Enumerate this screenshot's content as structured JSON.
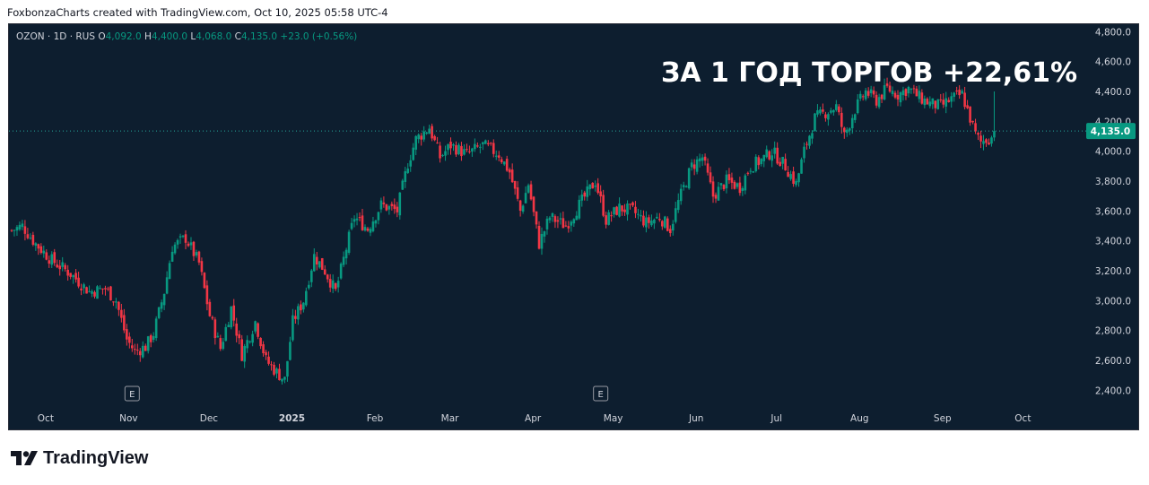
{
  "caption": "FoxbonzaCharts created with TradingView.com, Oct 10, 2025 05:58 UTC-4",
  "legend": {
    "symbol": "OZON · 1D · RUS",
    "open_label": "O",
    "open_value": "4,092.0",
    "high_label": "H",
    "high_value": "4,400.0",
    "low_label": "L",
    "low_value": "4,068.0",
    "close_label": "C",
    "close_value": "4,135.0",
    "change": "+23.0 (+0.56%)"
  },
  "overlay_text": "ЗА 1 ГОД ТОРГОВ +22,61%",
  "footer_brand": "TradingView",
  "colors": {
    "background": "#0d1e2f",
    "up": "#089981",
    "down": "#f23645",
    "axis_text": "#d1d4dc",
    "price_line": "#26a69a",
    "earnings_marker": "#9598a1"
  },
  "icons": [
    "tradingview-logo-icon",
    "earnings-e-icon"
  ],
  "chart_data": {
    "type": "candlestick",
    "title": "",
    "symbol": "OZON",
    "timeframe": "1D",
    "exchange": "RUS",
    "ylim": [
      2300,
      4850
    ],
    "y_ticks": [
      2400,
      2600,
      2800,
      3000,
      3200,
      3400,
      3600,
      3800,
      4000,
      4200,
      4400,
      4600,
      4800
    ],
    "y_tick_labels": [
      "2,400.0",
      "2,600.0",
      "2,800.0",
      "3,000.0",
      "3,200.0",
      "3,400.0",
      "3,600.0",
      "3,800.0",
      "4,000.0",
      "4,200.0",
      "4,400.0",
      "4,600.0",
      "4,800.0"
    ],
    "x_tick_labels": [
      "Oct",
      "Nov",
      "Dec",
      "2025",
      "Feb",
      "Mar",
      "Apr",
      "May",
      "Jun",
      "Jul",
      "Aug",
      "Sep",
      "Oct"
    ],
    "x_tick_dates": [
      "2024-10-01",
      "2024-11-01",
      "2024-12-01",
      "2025-01-01",
      "2025-02-01",
      "2025-03-01",
      "2025-04-01",
      "2025-05-01",
      "2025-06-01",
      "2025-07-01",
      "2025-08-01",
      "2025-09-01",
      "2025-10-01"
    ],
    "date_start": "2024-09-22",
    "date_end": "2025-10-25",
    "last_price": 4135.0,
    "last_price_label": "4,135.0",
    "earnings_markers": [
      {
        "date": "2024-11-07",
        "label": "E"
      },
      {
        "date": "2025-05-01",
        "label": "E"
      }
    ],
    "close_path": [
      {
        "date": "2024-09-23",
        "close": 3470
      },
      {
        "date": "2024-09-27",
        "close": 3500
      },
      {
        "date": "2024-10-02",
        "close": 3380
      },
      {
        "date": "2024-10-08",
        "close": 3270
      },
      {
        "date": "2024-10-15",
        "close": 3180
      },
      {
        "date": "2024-10-22",
        "close": 3060
      },
      {
        "date": "2024-10-28",
        "close": 3080
      },
      {
        "date": "2024-11-01",
        "close": 3000
      },
      {
        "date": "2024-11-05",
        "close": 2740
      },
      {
        "date": "2024-11-08",
        "close": 2660
      },
      {
        "date": "2024-11-12",
        "close": 2690
      },
      {
        "date": "2024-11-15",
        "close": 2780
      },
      {
        "date": "2024-11-19",
        "close": 3060
      },
      {
        "date": "2024-11-22",
        "close": 3360
      },
      {
        "date": "2024-11-27",
        "close": 3420
      },
      {
        "date": "2024-12-02",
        "close": 3250
      },
      {
        "date": "2024-12-06",
        "close": 2900
      },
      {
        "date": "2024-12-10",
        "close": 2680
      },
      {
        "date": "2024-12-14",
        "close": 2950
      },
      {
        "date": "2024-12-18",
        "close": 2640
      },
      {
        "date": "2024-12-23",
        "close": 2860
      },
      {
        "date": "2024-12-27",
        "close": 2600
      },
      {
        "date": "2024-12-31",
        "close": 2520
      },
      {
        "date": "2025-01-03",
        "close": 2470
      },
      {
        "date": "2025-01-06",
        "close": 2860
      },
      {
        "date": "2025-01-10",
        "close": 3000
      },
      {
        "date": "2025-01-14",
        "close": 3300
      },
      {
        "date": "2025-01-18",
        "close": 3200
      },
      {
        "date": "2025-01-22",
        "close": 3060
      },
      {
        "date": "2025-01-26",
        "close": 3350
      },
      {
        "date": "2025-01-29",
        "close": 3560
      },
      {
        "date": "2025-02-03",
        "close": 3480
      },
      {
        "date": "2025-02-08",
        "close": 3640
      },
      {
        "date": "2025-02-14",
        "close": 3600
      },
      {
        "date": "2025-02-18",
        "close": 3920
      },
      {
        "date": "2025-02-21",
        "close": 4080
      },
      {
        "date": "2025-02-26",
        "close": 4160
      },
      {
        "date": "2025-03-02",
        "close": 3960
      },
      {
        "date": "2025-03-06",
        "close": 4040
      },
      {
        "date": "2025-03-12",
        "close": 3980
      },
      {
        "date": "2025-03-18",
        "close": 4040
      },
      {
        "date": "2025-03-24",
        "close": 3980
      },
      {
        "date": "2025-03-28",
        "close": 3860
      },
      {
        "date": "2025-04-01",
        "close": 3600
      },
      {
        "date": "2025-04-04",
        "close": 3780
      },
      {
        "date": "2025-04-08",
        "close": 3380
      },
      {
        "date": "2025-04-12",
        "close": 3560
      },
      {
        "date": "2025-04-18",
        "close": 3500
      },
      {
        "date": "2025-04-23",
        "close": 3640
      },
      {
        "date": "2025-04-29",
        "close": 3800
      },
      {
        "date": "2025-05-03",
        "close": 3540
      },
      {
        "date": "2025-05-08",
        "close": 3620
      },
      {
        "date": "2025-05-13",
        "close": 3600
      },
      {
        "date": "2025-05-18",
        "close": 3520
      },
      {
        "date": "2025-05-23",
        "close": 3560
      },
      {
        "date": "2025-05-27",
        "close": 3480
      },
      {
        "date": "2025-05-30",
        "close": 3660
      },
      {
        "date": "2025-06-04",
        "close": 3900
      },
      {
        "date": "2025-06-08",
        "close": 3960
      },
      {
        "date": "2025-06-12",
        "close": 3700
      },
      {
        "date": "2025-06-17",
        "close": 3800
      },
      {
        "date": "2025-06-22",
        "close": 3760
      },
      {
        "date": "2025-06-26",
        "close": 3900
      },
      {
        "date": "2025-06-30",
        "close": 3940
      },
      {
        "date": "2025-07-04",
        "close": 4000
      },
      {
        "date": "2025-07-09",
        "close": 3900
      },
      {
        "date": "2025-07-13",
        "close": 3780
      },
      {
        "date": "2025-07-16",
        "close": 4000
      },
      {
        "date": "2025-07-20",
        "close": 4220
      },
      {
        "date": "2025-07-24",
        "close": 4260
      },
      {
        "date": "2025-07-28",
        "close": 4300
      },
      {
        "date": "2025-07-31",
        "close": 4100
      },
      {
        "date": "2025-08-04",
        "close": 4280
      },
      {
        "date": "2025-08-08",
        "close": 4400
      },
      {
        "date": "2025-08-12",
        "close": 4340
      },
      {
        "date": "2025-08-16",
        "close": 4420
      },
      {
        "date": "2025-08-20",
        "close": 4380
      },
      {
        "date": "2025-08-24",
        "close": 4420
      },
      {
        "date": "2025-08-28",
        "close": 4360
      },
      {
        "date": "2025-09-01",
        "close": 4320
      },
      {
        "date": "2025-09-05",
        "close": 4300
      },
      {
        "date": "2025-09-09",
        "close": 4350
      },
      {
        "date": "2025-09-13",
        "close": 4380
      },
      {
        "date": "2025-09-16",
        "close": 4220
      },
      {
        "date": "2025-09-18",
        "close": 4110
      },
      {
        "date": "2025-09-20",
        "close": 4060
      },
      {
        "date": "2025-09-22",
        "close": 4080
      },
      {
        "date": "2025-09-24",
        "close": 4092
      },
      {
        "date": "2025-09-25",
        "close": 4135
      }
    ]
  }
}
